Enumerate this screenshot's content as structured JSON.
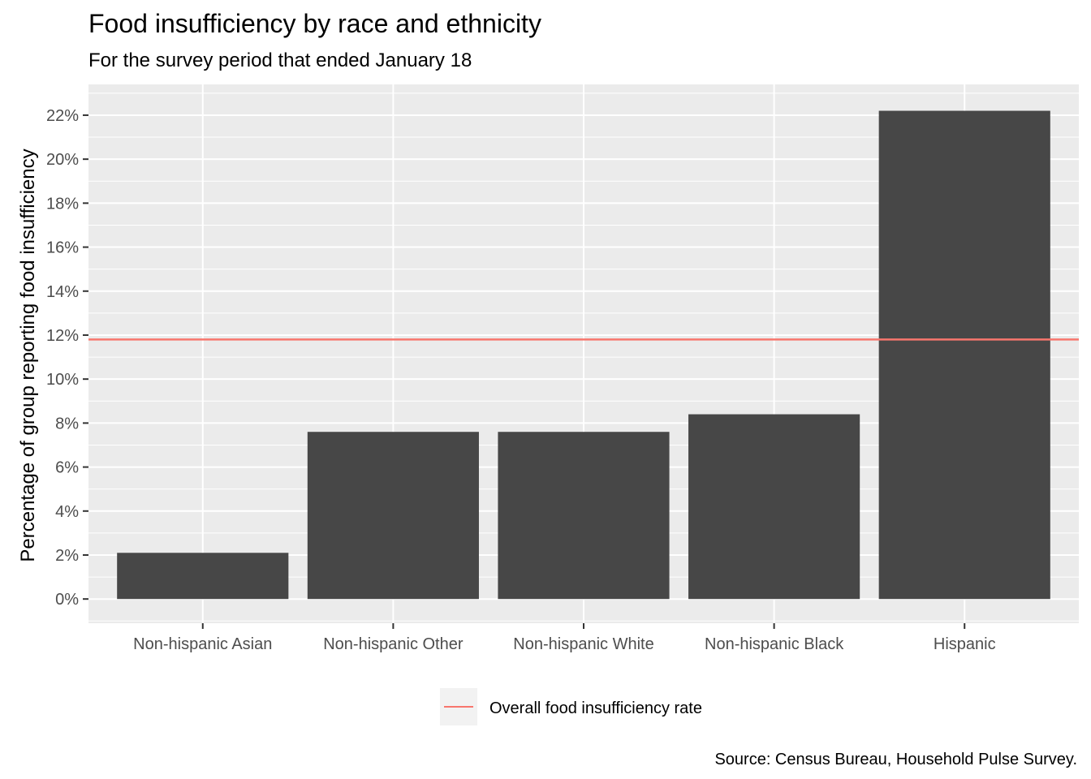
{
  "chart_data": {
    "type": "bar",
    "title": "Food insufficiency by race and ethnicity",
    "subtitle": "For the survey period that ended January 18",
    "xlabel": "",
    "ylabel": "Percentage of group reporting food insufficiency",
    "categories": [
      "Non-hispanic Asian",
      "Non-hispanic Other",
      "Non-hispanic White",
      "Non-hispanic Black",
      "Hispanic"
    ],
    "values": [
      2.1,
      7.6,
      7.6,
      8.4,
      22.2
    ],
    "ylim": [
      -1.1,
      23.4
    ],
    "yticks": [
      0,
      2,
      4,
      6,
      8,
      10,
      12,
      14,
      16,
      18,
      20,
      22
    ],
    "ytick_labels": [
      "0%",
      "2%",
      "4%",
      "6%",
      "8%",
      "10%",
      "12%",
      "14%",
      "16%",
      "18%",
      "20%",
      "22%"
    ],
    "reference_line": {
      "name": "Overall food insufficiency rate",
      "value": 11.8,
      "color": "#F8766D"
    },
    "legend": {
      "position": "bottom",
      "entries": [
        "Overall food insufficiency rate"
      ]
    },
    "grid": true,
    "bar_color": "#474747",
    "panel_color": "#EBEBEB",
    "caption": "Source: Census Bureau, Household Pulse Survey."
  }
}
